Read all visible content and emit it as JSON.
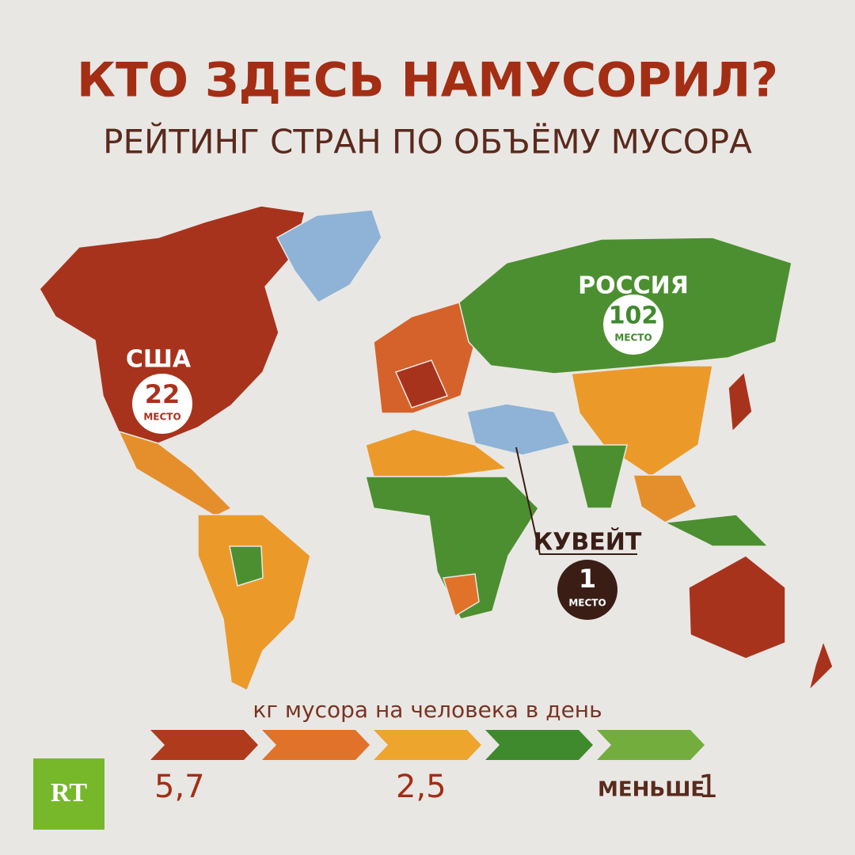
{
  "header": {
    "title": "КТО ЗДЕСЬ НАМУСОРИЛ?",
    "subtitle": "РЕЙТИНГ СТРАН ПО ОБЪЁМУ МУСОРА"
  },
  "callouts": [
    {
      "country": "США",
      "rank": "22",
      "rank_label": "МЕСТО"
    },
    {
      "country": "РОССИЯ",
      "rank": "102",
      "rank_label": "МЕСТО"
    },
    {
      "country": "КУВЕЙТ",
      "rank": "1",
      "rank_label": "МЕСТО"
    }
  ],
  "legend": {
    "title": "кг мусора на человека в день",
    "colors": [
      "#b03a1c",
      "#e0722a",
      "#eea52e",
      "#3f8a2c",
      "#72ad3e"
    ],
    "high": "5,7",
    "middle": "2,5",
    "low_prefix": "МЕНЬШЕ",
    "low": "1"
  },
  "logo": "RT"
}
